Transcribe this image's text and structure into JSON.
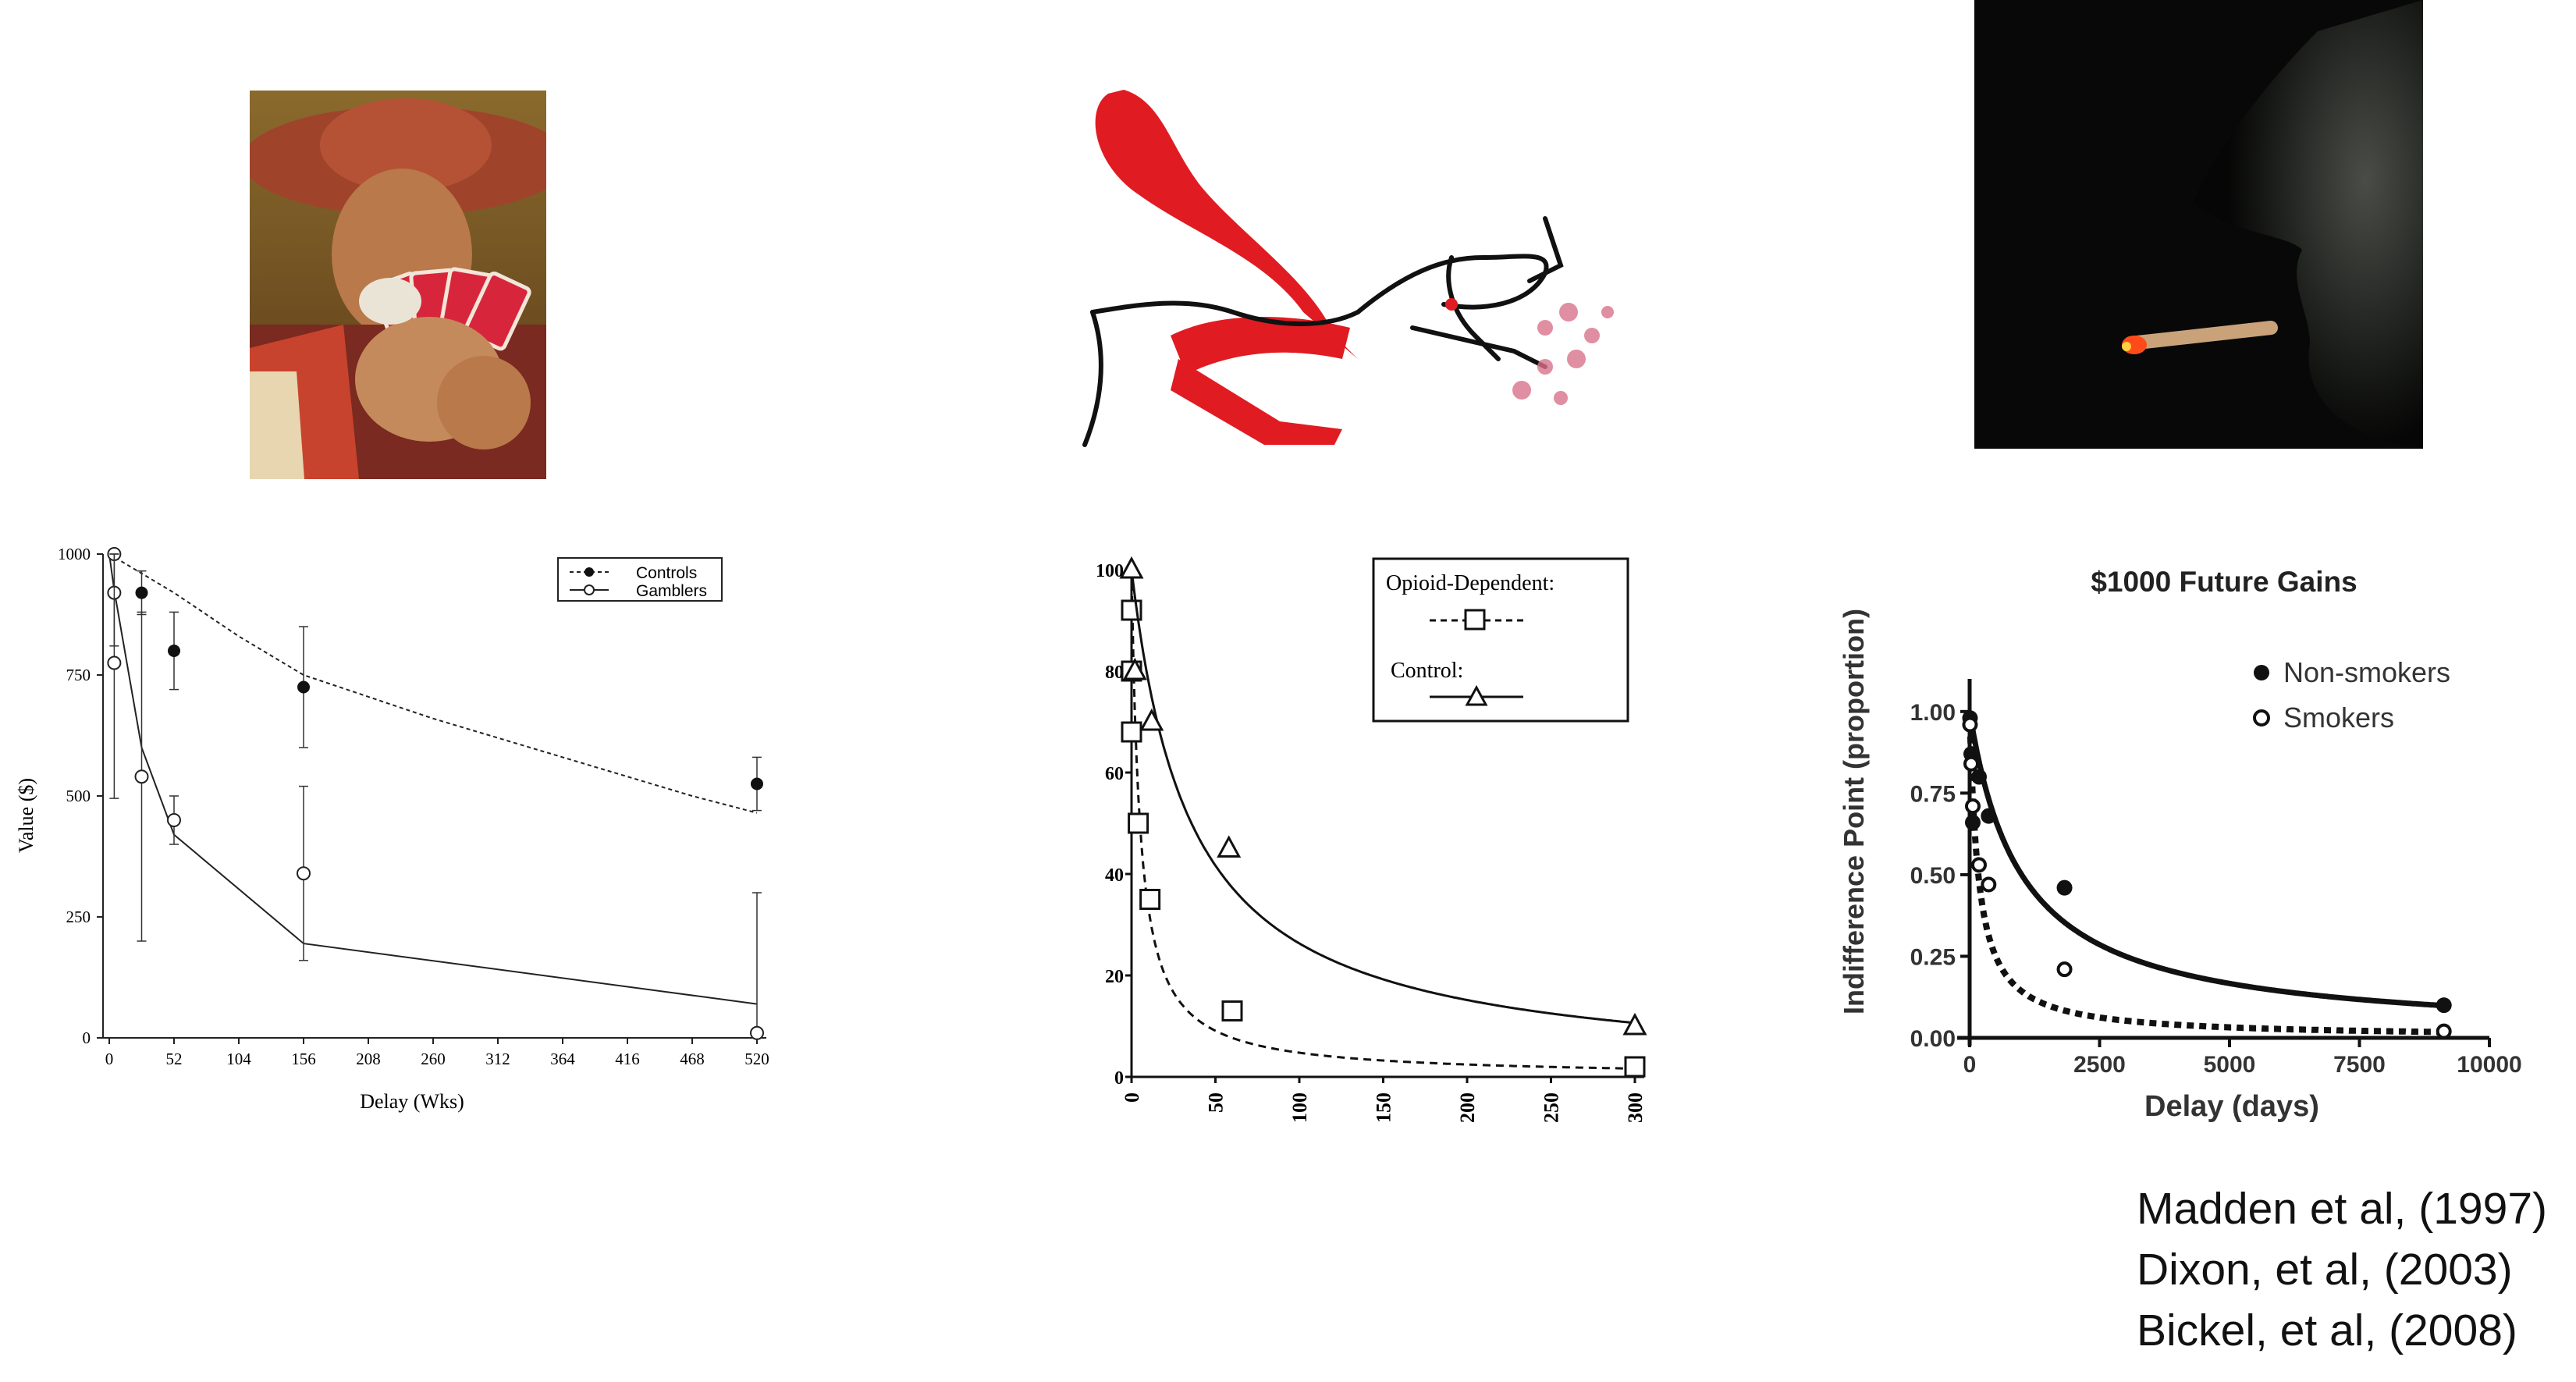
{
  "illustrations": [
    {
      "name": "gambler-painting",
      "description_icon": "card-player-icon"
    },
    {
      "name": "opioid-drawing",
      "description_icon": "figure-drawing-icon"
    },
    {
      "name": "smoker-photo",
      "description_icon": "cigarette-smoker-icon"
    }
  ],
  "citations": [
    "Madden et al, (1997)",
    "Dixon, et al, (2003)",
    "Bickel, et al, (2008)"
  ],
  "chart_data": [
    {
      "type": "scatter",
      "title": "",
      "xlabel": "Delay (Wks)",
      "ylabel": "Value ($)",
      "xlim": [
        0,
        520
      ],
      "ylim": [
        0,
        1000
      ],
      "xticks": [
        "0",
        "52",
        "104",
        "156",
        "208",
        "260",
        "312",
        "364",
        "416",
        "468",
        "520"
      ],
      "yticks": [
        "0",
        "250",
        "500",
        "750",
        "1000"
      ],
      "legend_position": "top-right",
      "series": [
        {
          "name": "Controls",
          "marker": "filled-circle",
          "line": "dashed",
          "points": [
            {
              "x": 4,
              "y": 920,
              "err": 0
            },
            {
              "x": 26,
              "y": 920,
              "err": 45
            },
            {
              "x": 52,
              "y": 800,
              "err": 80
            },
            {
              "x": 156,
              "y": 725,
              "err": 125
            },
            {
              "x": 520,
              "y": 525,
              "err": 55
            }
          ],
          "curve": [
            [
              0,
              1000
            ],
            [
              52,
              920
            ],
            [
              104,
              830
            ],
            [
              156,
              750
            ],
            [
              260,
              660
            ],
            [
              364,
              580
            ],
            [
              468,
              500
            ],
            [
              520,
              465
            ]
          ]
        },
        {
          "name": "Gamblers",
          "marker": "open-circle",
          "line": "solid",
          "points": [
            {
              "x": 4,
              "y": 1000,
              "err": 0
            },
            {
              "x": 4,
              "y": 920,
              "err": 110
            },
            {
              "x": 4,
              "y": 775,
              "err": 280
            },
            {
              "x": 26,
              "y": 540,
              "err": 340
            },
            {
              "x": 52,
              "y": 450,
              "err": 50
            },
            {
              "x": 156,
              "y": 340,
              "err": 180
            },
            {
              "x": 520,
              "y": 10,
              "err": 290
            }
          ],
          "curve": [
            [
              0,
              1000
            ],
            [
              4,
              925
            ],
            [
              26,
              600
            ],
            [
              52,
              420
            ],
            [
              156,
              195
            ],
            [
              520,
              70
            ]
          ]
        }
      ]
    },
    {
      "type": "scatter",
      "title": "",
      "xlabel": "",
      "ylabel": "",
      "xlim": [
        0,
        300
      ],
      "ylim": [
        0,
        100
      ],
      "xticks": [
        "0",
        "50",
        "100",
        "150",
        "200",
        "250",
        "300"
      ],
      "yticks": [
        "0",
        "20",
        "40",
        "60",
        "80",
        "100"
      ],
      "legend_position": "top-right",
      "series": [
        {
          "name": "Opioid-Dependent:",
          "marker": "open-square",
          "line": "dashed",
          "points": [
            [
              0,
              92
            ],
            [
              0,
              80
            ],
            [
              0,
              68
            ],
            [
              4,
              50
            ],
            [
              11,
              35
            ],
            [
              60,
              13
            ],
            [
              300,
              2
            ]
          ],
          "k": 0.2
        },
        {
          "name": "Control:",
          "marker": "open-triangle",
          "line": "solid",
          "points": [
            [
              0,
              100
            ],
            [
              2,
              80
            ],
            [
              12,
              70
            ],
            [
              58,
              45
            ],
            [
              300,
              10
            ]
          ],
          "k": 0.028
        }
      ]
    },
    {
      "type": "scatter",
      "title": "$1000 Future  Gains",
      "xlabel": "Delay (days)",
      "ylabel": "Indifference Point (proportion)",
      "xlim": [
        0,
        10000
      ],
      "ylim": [
        0,
        1.1
      ],
      "xticks": [
        "0",
        "2500",
        "5000",
        "7500",
        "10000"
      ],
      "yticks": [
        "0.00",
        "0.25",
        "0.50",
        "0.75",
        "1.00"
      ],
      "legend_position": "top-right",
      "series": [
        {
          "name": "Non-smokers",
          "marker": "filled-circle",
          "line": "solid",
          "points": [
            [
              7,
              0.98
            ],
            [
              30,
              0.87
            ],
            [
              60,
              0.66
            ],
            [
              180,
              0.8
            ],
            [
              365,
              0.68
            ],
            [
              1825,
              0.46
            ],
            [
              9125,
              0.1
            ]
          ],
          "k": 0.001
        },
        {
          "name": "Smokers",
          "marker": "open-circle",
          "line": "dashed",
          "points": [
            [
              7,
              0.96
            ],
            [
              30,
              0.84
            ],
            [
              60,
              0.71
            ],
            [
              180,
              0.53
            ],
            [
              365,
              0.47
            ],
            [
              1825,
              0.21
            ],
            [
              9125,
              0.02
            ]
          ],
          "k": 0.006
        }
      ]
    }
  ]
}
